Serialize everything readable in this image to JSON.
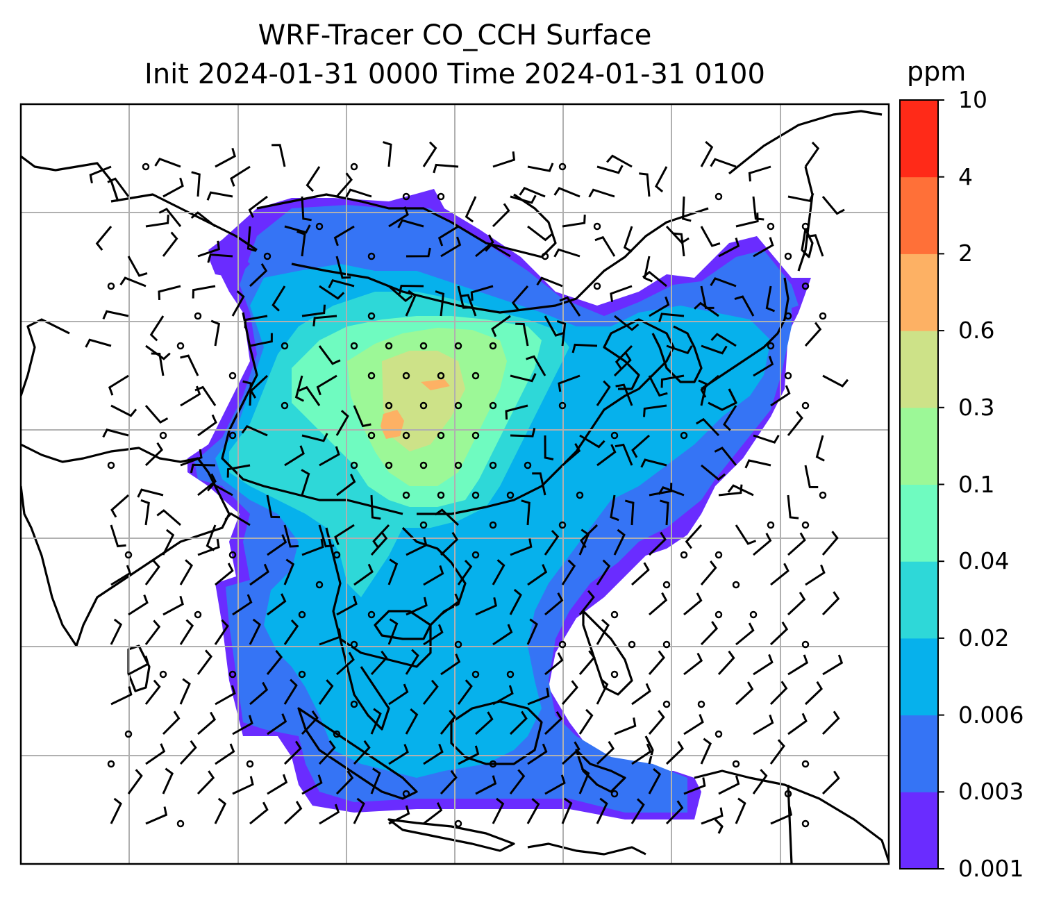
{
  "title": {
    "line1": "WRF-Tracer CO_CCH Surface",
    "line2": "Init 2024-01-31 0000 Time 2024-01-31 0100"
  },
  "colorbar": {
    "unit": "ppm",
    "ticks": [
      "0.001",
      "0.003",
      "0.006",
      "0.02",
      "0.04",
      "0.1",
      "0.3",
      "0.6",
      "2",
      "4",
      "10"
    ],
    "colors": [
      "#6a2cff",
      "#3574f5",
      "#06b1ec",
      "#2ed8d8",
      "#6ffbc0",
      "#9cf897",
      "#cde288",
      "#fdb164",
      "#ff7038",
      "#ff2a18"
    ]
  },
  "map": {
    "gridlines": true,
    "field_colors": {
      "outer": "#6a2cff",
      "low": "#3574f5",
      "mid": "#06b1ec",
      "moderate": "#2ed8d8",
      "elevated": "#6ffbc0",
      "high": "#9cf897",
      "very_high": "#cde288",
      "peak": "#fdb164"
    },
    "wind_symbols": [
      "calm-circle",
      "barb"
    ]
  }
}
